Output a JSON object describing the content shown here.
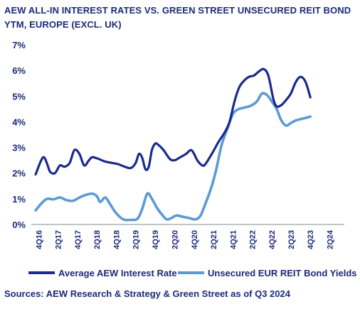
{
  "title": "AEW ALL-IN INTEREST RATES VS. GREEN STREET UNSECURED REIT BOND YTM, EUROPE (EXCL. UK)",
  "source": "Sources: AEW Research & Strategy & Green Street as of Q3 2024",
  "colors": {
    "series1": "#1b2a8c",
    "series2": "#5b9bd5",
    "axis": "#1b2a78",
    "grid": "#9e9e9e"
  },
  "chart_data": {
    "type": "line",
    "title": "AEW ALL-IN INTEREST RATES VS. GREEN STREET UNSECURED REIT BOND YTM, EUROPE (EXCL. UK)",
    "xlabel": "",
    "ylabel": "",
    "ylim": [
      0,
      7
    ],
    "yticks": [
      "0%",
      "1%",
      "2%",
      "3%",
      "4%",
      "5%",
      "6%",
      "7%"
    ],
    "grid": false,
    "legend": "bottom",
    "x_range": [
      "2016-10-01",
      "2024-09-30"
    ],
    "x_tick_labels": [
      "4Q16",
      "2Q17",
      "4Q17",
      "2Q18",
      "4Q18",
      "2Q19",
      "4Q19",
      "2Q20",
      "4Q20",
      "2Q21",
      "4Q21",
      "2Q22",
      "4Q22",
      "2Q23",
      "4Q23",
      "2Q24"
    ],
    "x_tick_dates": [
      "2016-11-15",
      "2017-05-15",
      "2017-11-15",
      "2018-05-15",
      "2018-11-15",
      "2019-05-15",
      "2019-11-15",
      "2020-05-15",
      "2020-11-15",
      "2021-05-15",
      "2021-11-15",
      "2022-05-15",
      "2022-11-15",
      "2023-05-15",
      "2023-11-15",
      "2024-05-15"
    ],
    "series": [
      {
        "name": "Average AEW Interest Rate",
        "color": "#1b2a8c",
        "points": [
          [
            "2016-10-15",
            1.95
          ],
          [
            "2016-12-01",
            2.45
          ],
          [
            "2017-01-01",
            2.62
          ],
          [
            "2017-02-01",
            2.35
          ],
          [
            "2017-03-01",
            2.05
          ],
          [
            "2017-04-15",
            2.0
          ],
          [
            "2017-06-01",
            2.3
          ],
          [
            "2017-07-15",
            2.25
          ],
          [
            "2017-09-01",
            2.4
          ],
          [
            "2017-10-15",
            2.9
          ],
          [
            "2017-12-01",
            2.75
          ],
          [
            "2018-01-15",
            2.3
          ],
          [
            "2018-03-01",
            2.5
          ],
          [
            "2018-04-01",
            2.62
          ],
          [
            "2018-06-01",
            2.55
          ],
          [
            "2018-08-01",
            2.45
          ],
          [
            "2018-10-01",
            2.4
          ],
          [
            "2018-12-01",
            2.35
          ],
          [
            "2019-02-01",
            2.25
          ],
          [
            "2019-04-01",
            2.2
          ],
          [
            "2019-05-15",
            2.4
          ],
          [
            "2019-06-15",
            2.75
          ],
          [
            "2019-07-15",
            2.6
          ],
          [
            "2019-08-15",
            2.15
          ],
          [
            "2019-09-15",
            2.25
          ],
          [
            "2019-10-15",
            2.9
          ],
          [
            "2019-11-15",
            3.15
          ],
          [
            "2019-12-15",
            3.1
          ],
          [
            "2020-02-01",
            2.9
          ],
          [
            "2020-04-01",
            2.55
          ],
          [
            "2020-05-15",
            2.5
          ],
          [
            "2020-07-01",
            2.6
          ],
          [
            "2020-09-01",
            2.75
          ],
          [
            "2020-10-15",
            2.9
          ],
          [
            "2020-11-15",
            2.75
          ],
          [
            "2020-12-15",
            2.5
          ],
          [
            "2021-02-01",
            2.3
          ],
          [
            "2021-03-01",
            2.35
          ],
          [
            "2021-05-01",
            2.75
          ],
          [
            "2021-07-01",
            3.2
          ],
          [
            "2021-09-01",
            3.6
          ],
          [
            "2021-10-15",
            4.0
          ],
          [
            "2021-12-01",
            4.8
          ],
          [
            "2022-01-15",
            5.35
          ],
          [
            "2022-03-01",
            5.6
          ],
          [
            "2022-04-15",
            5.75
          ],
          [
            "2022-06-01",
            5.8
          ],
          [
            "2022-07-15",
            5.95
          ],
          [
            "2022-09-01",
            6.05
          ],
          [
            "2022-10-15",
            5.8
          ],
          [
            "2022-12-01",
            4.9
          ],
          [
            "2023-01-01",
            4.6
          ],
          [
            "2023-02-15",
            4.65
          ],
          [
            "2023-04-01",
            4.85
          ],
          [
            "2023-05-15",
            5.1
          ],
          [
            "2023-07-01",
            5.55
          ],
          [
            "2023-08-15",
            5.75
          ],
          [
            "2023-10-01",
            5.55
          ],
          [
            "2023-11-15",
            4.95
          ]
        ]
      },
      {
        "name": "Unsecured EUR REIT Bond Yields",
        "color": "#5b9bd5",
        "points": [
          [
            "2016-10-15",
            0.55
          ],
          [
            "2016-12-15",
            0.85
          ],
          [
            "2017-02-01",
            1.0
          ],
          [
            "2017-04-01",
            0.98
          ],
          [
            "2017-06-01",
            1.05
          ],
          [
            "2017-08-01",
            0.95
          ],
          [
            "2017-10-01",
            0.92
          ],
          [
            "2017-12-01",
            1.05
          ],
          [
            "2018-02-01",
            1.15
          ],
          [
            "2018-04-01",
            1.2
          ],
          [
            "2018-05-15",
            1.1
          ],
          [
            "2018-06-15",
            0.88
          ],
          [
            "2018-08-01",
            1.05
          ],
          [
            "2018-09-15",
            0.8
          ],
          [
            "2018-11-01",
            0.5
          ],
          [
            "2018-12-15",
            0.3
          ],
          [
            "2019-02-01",
            0.18
          ],
          [
            "2019-04-01",
            0.18
          ],
          [
            "2019-06-01",
            0.22
          ],
          [
            "2019-07-15",
            0.6
          ],
          [
            "2019-09-01",
            1.2
          ],
          [
            "2019-10-15",
            1.0
          ],
          [
            "2019-12-01",
            0.65
          ],
          [
            "2020-01-15",
            0.4
          ],
          [
            "2020-03-01",
            0.2
          ],
          [
            "2020-04-15",
            0.25
          ],
          [
            "2020-06-01",
            0.35
          ],
          [
            "2020-08-01",
            0.3
          ],
          [
            "2020-10-01",
            0.25
          ],
          [
            "2020-12-01",
            0.2
          ],
          [
            "2021-01-15",
            0.35
          ],
          [
            "2021-03-01",
            0.8
          ],
          [
            "2021-05-01",
            1.5
          ],
          [
            "2021-06-15",
            2.2
          ],
          [
            "2021-08-01",
            3.1
          ],
          [
            "2021-10-01",
            3.8
          ],
          [
            "2021-11-15",
            4.3
          ],
          [
            "2022-01-01",
            4.48
          ],
          [
            "2022-03-01",
            4.55
          ],
          [
            "2022-05-01",
            4.62
          ],
          [
            "2022-07-01",
            4.8
          ],
          [
            "2022-08-15",
            5.1
          ],
          [
            "2022-10-01",
            5.05
          ],
          [
            "2022-11-15",
            4.8
          ],
          [
            "2023-01-01",
            4.5
          ],
          [
            "2023-02-15",
            4.05
          ],
          [
            "2023-04-01",
            3.85
          ],
          [
            "2023-05-15",
            3.95
          ],
          [
            "2023-07-01",
            4.05
          ],
          [
            "2023-08-15",
            4.1
          ],
          [
            "2023-10-01",
            4.15
          ],
          [
            "2023-11-15",
            4.2
          ]
        ]
      }
    ]
  }
}
